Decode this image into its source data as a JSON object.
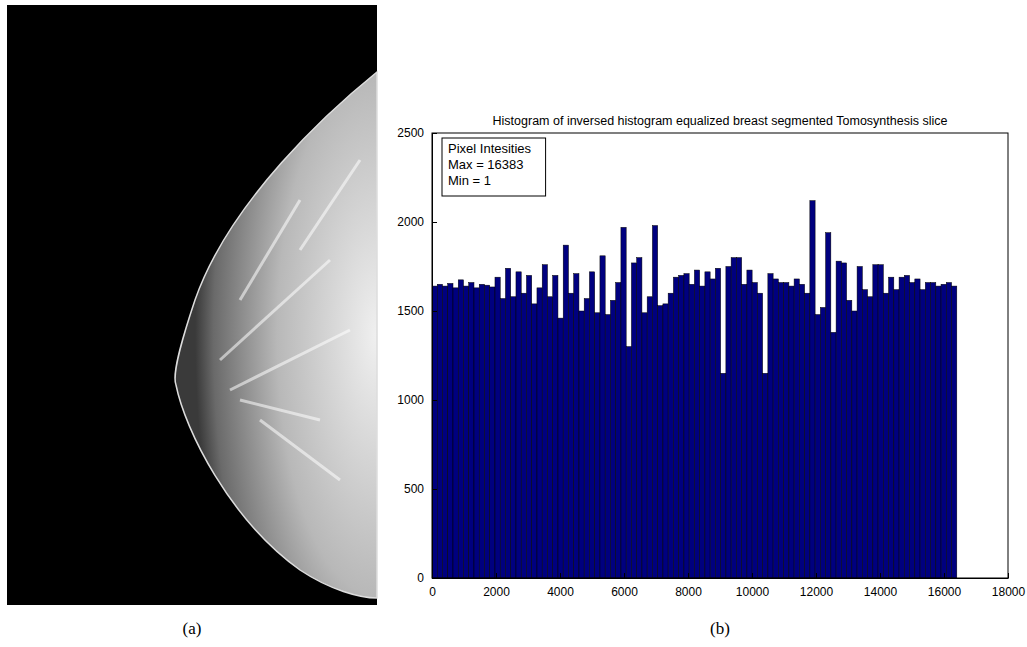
{
  "panel_labels": [
    "(a)",
    "(b)"
  ],
  "chart_data": {
    "type": "histogram",
    "title": "Histogram of inversed histogram equalized breast segmented Tomosynthesis slice",
    "annotations": [
      "Pixel Intesities",
      "Max = 16383",
      "Min = 1"
    ],
    "bins": [
      0,
      164,
      328,
      492,
      656,
      820,
      984,
      1148,
      1312,
      1476,
      1640,
      1804,
      1968,
      2132,
      2296,
      2460,
      2624,
      2788,
      2952,
      3116,
      3280,
      3444,
      3608,
      3772,
      3936,
      4100,
      4264,
      4428,
      4592,
      4756,
      4920,
      5084,
      5248,
      5412,
      5576,
      5740,
      5904,
      6068,
      6232,
      6396,
      6560,
      6724,
      6888,
      7052,
      7216,
      7380,
      7544,
      7708,
      7872,
      8036,
      8200,
      8364,
      8528,
      8692,
      8856,
      9020,
      9184,
      9348,
      9512,
      9676,
      9840,
      10004,
      10168,
      10332,
      10496,
      10660,
      10824,
      10988,
      11152,
      11316,
      11480,
      11644,
      11808,
      11972,
      12136,
      12300,
      12464,
      12628,
      12792,
      12956,
      13120,
      13284,
      13448,
      13612,
      13776,
      13940,
      14104,
      14268,
      14432,
      14596,
      14760,
      14924,
      15088,
      15252,
      15416,
      15580,
      15744,
      15908,
      16072,
      16236,
      16400
    ],
    "values": [
      1640,
      1650,
      1640,
      1655,
      1630,
      1675,
      1640,
      1660,
      1630,
      1650,
      1645,
      1635,
      1690,
      1570,
      1740,
      1580,
      1720,
      1600,
      1700,
      1540,
      1630,
      1760,
      1580,
      1700,
      1460,
      1870,
      1600,
      1710,
      1500,
      1570,
      1720,
      1490,
      1810,
      1480,
      1560,
      1660,
      1970,
      1300,
      1770,
      1800,
      1490,
      1580,
      1980,
      1530,
      1540,
      1600,
      1690,
      1700,
      1710,
      1650,
      1730,
      1640,
      1720,
      1680,
      1740,
      1150,
      1750,
      1800,
      1800,
      1650,
      1730,
      1660,
      1600,
      1150,
      1710,
      1680,
      1660,
      1660,
      1640,
      1680,
      1650,
      1600,
      2120,
      1480,
      1520,
      1940,
      1380,
      1780,
      1770,
      1560,
      1500,
      1750,
      1620,
      1580,
      1760,
      1760,
      1600,
      1690,
      1620,
      1690,
      1700,
      1660,
      1680,
      1620,
      1660,
      1660,
      1640,
      1650,
      1660,
      1640
    ],
    "color": "#00007f",
    "xlim": [
      0,
      18000
    ],
    "ylim": [
      0,
      2500
    ],
    "xticks": [
      0,
      2000,
      4000,
      6000,
      8000,
      10000,
      12000,
      14000,
      16000,
      18000
    ],
    "yticks": [
      0,
      500,
      1000,
      1500,
      2000,
      2500
    ],
    "grid": false
  }
}
